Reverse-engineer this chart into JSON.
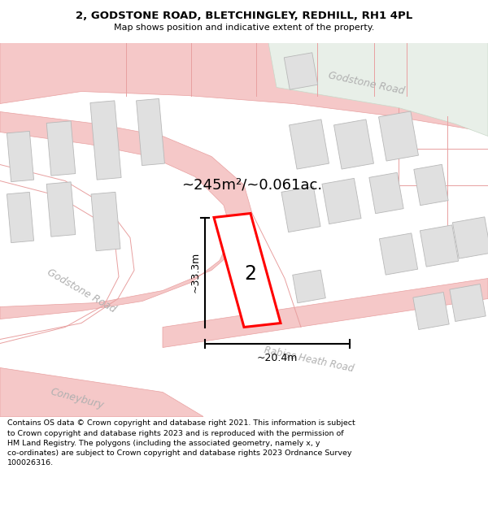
{
  "title": "2, GODSTONE ROAD, BLETCHINGLEY, REDHILL, RH1 4PL",
  "subtitle": "Map shows position and indicative extent of the property.",
  "footer_line1": "Contains OS data © Crown copyright and database right 2021. This information is subject",
  "footer_line2": "to Crown copyright and database rights 2023 and is reproduced with the permission of",
  "footer_line3": "HM Land Registry. The polygons (including the associated geometry, namely x, y",
  "footer_line4": "co-ordinates) are subject to Crown copyright and database rights 2023 Ordnance Survey",
  "footer_line5": "100026316.",
  "bg_color": "#ffffff",
  "map_bg": "#ffffff",
  "road_color": "#f5c8c8",
  "road_edge": "#e8a0a0",
  "building_fill": "#e0e0e0",
  "building_edge": "#b8b8b8",
  "green_fill": "#e8efe8",
  "property_color": "#ff0000",
  "property_fill": "#ffffff",
  "area_text": "~245m²/~0.061ac.",
  "dim_width": "~20.4m",
  "dim_height": "~33.3m",
  "number_label": "2",
  "road_label_godstone_top": "Godstone Road",
  "road_label_godstone_left": "Godstone Road",
  "road_label_rabies": "Rabies Heath Road",
  "road_label_coneybury": "Coneybury"
}
